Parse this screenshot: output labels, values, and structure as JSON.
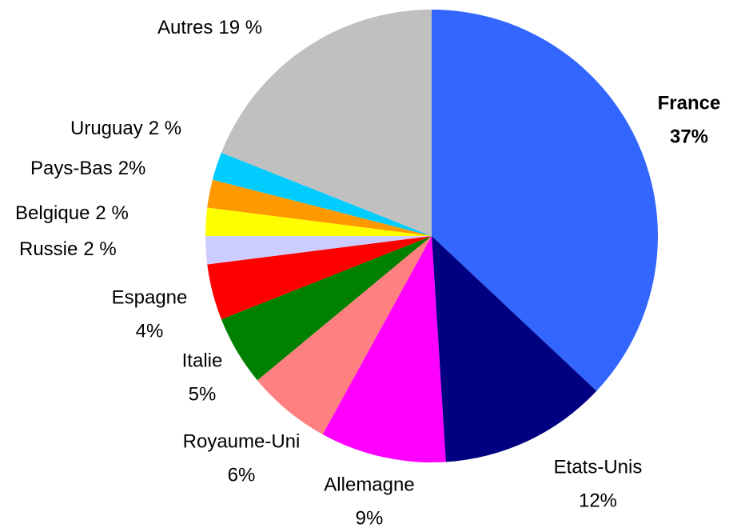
{
  "chart_data": {
    "type": "pie",
    "categories": [
      "France",
      "Etats-Unis",
      "Allemagne",
      "Royaume-Uni",
      "Italie",
      "Espagne",
      "Russie",
      "Belgique",
      "Pays-Bas",
      "Uruguay",
      "Autres"
    ],
    "values": [
      37,
      12,
      9,
      6,
      5,
      4,
      2,
      2,
      2,
      2,
      19
    ],
    "value_labels": [
      "37%",
      "12%",
      "9%",
      "6%",
      "5%",
      "4%",
      "2 %",
      "2 %",
      "2%",
      "2 %",
      "19 %"
    ],
    "colors": [
      "#3366ff",
      "#000080",
      "#ff00ff",
      "#ff8080",
      "#008000",
      "#ff0000",
      "#ccccff",
      "#ffff00",
      "#ff9900",
      "#00ccff",
      "#c0c0c0"
    ]
  }
}
